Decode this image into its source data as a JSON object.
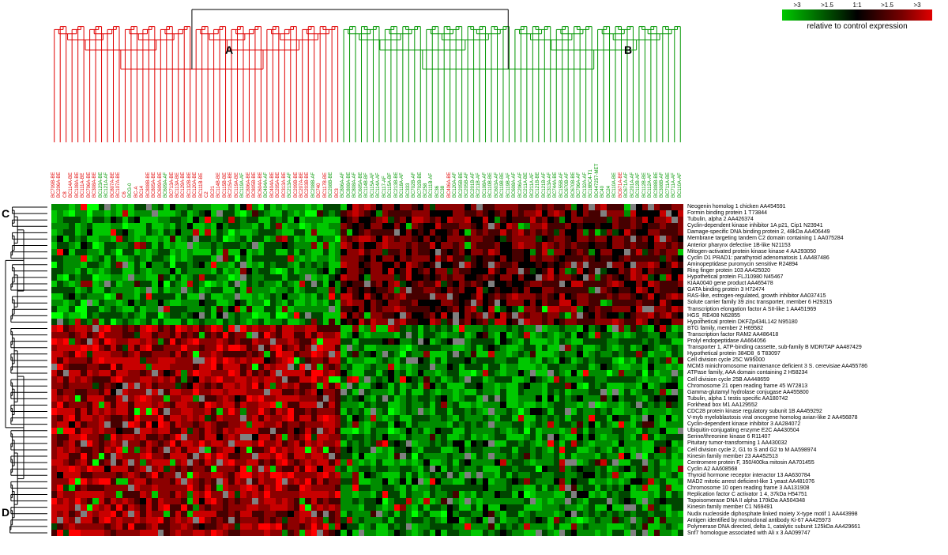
{
  "legend": {
    "ticks": [
      ">3",
      ">1.5",
      "1:1",
      ">1.5",
      ">3"
    ],
    "caption": "relative to control expression",
    "gradient_stops": [
      "#00c800",
      "#007800",
      "#000000",
      "#780000",
      "#e00000"
    ]
  },
  "cluster_labels": {
    "A": "A",
    "B": "B",
    "C": "C",
    "D": "D"
  },
  "dendrogram_colors": {
    "root": "#000000",
    "col_A": "#e00000",
    "col_B": "#009600",
    "row": "#000000"
  },
  "value_colors": {
    "v-4": "#00ff00",
    "v-3": "#00c800",
    "v-2": "#008c00",
    "v-1": "#004600",
    "v0": "#000000",
    "v1": "#460000",
    "v2": "#8c0000",
    "v3": "#c80000",
    "v4": "#ff0000",
    "vNA": "#808080"
  },
  "samples": [
    {
      "id": "BC709B-BE",
      "c": "A"
    },
    {
      "id": "BC206A-BE",
      "c": "A"
    },
    {
      "id": "C8",
      "c": "A"
    },
    {
      "id": "BC114A-BE",
      "c": "A"
    },
    {
      "id": "BC108A-BE",
      "c": "A"
    },
    {
      "id": "BC111A-BE",
      "c": "A"
    },
    {
      "id": "BC706A-BE",
      "c": "A"
    },
    {
      "id": "BC308A-BE",
      "c": "A"
    },
    {
      "id": "BC123A-BE",
      "c": "B"
    },
    {
      "id": "BC121A-AF",
      "c": "B"
    },
    {
      "id": "BC807A-BE",
      "c": "A"
    },
    {
      "id": "BC107A-BE",
      "c": "A"
    },
    {
      "id": "C6",
      "c": "A"
    },
    {
      "id": "BCG-0",
      "c": "B"
    },
    {
      "id": "BC-A",
      "c": "A"
    },
    {
      "id": "BC14",
      "c": "A"
    },
    {
      "id": "BC808B-BE",
      "c": "A"
    },
    {
      "id": "BC805A-BE",
      "c": "A"
    },
    {
      "id": "BC609A-BE",
      "c": "A"
    },
    {
      "id": "BC609A-AF",
      "c": "B"
    },
    {
      "id": "BC713A-BE",
      "c": "A"
    },
    {
      "id": "BC113A-BE",
      "c": "A"
    },
    {
      "id": "BC129A-BE",
      "c": "A"
    },
    {
      "id": "BC132B-BE",
      "c": "A"
    },
    {
      "id": "BC120A-BE",
      "c": "A"
    },
    {
      "id": "BC111B-BE",
      "c": "A"
    },
    {
      "id": "C2",
      "c": "A"
    },
    {
      "id": "BC21",
      "c": "A"
    },
    {
      "id": "BC114B-BE",
      "c": "A"
    },
    {
      "id": "BC115B-BE",
      "c": "A"
    },
    {
      "id": "BC215A-BE",
      "c": "A"
    },
    {
      "id": "BC119A-BE",
      "c": "A"
    },
    {
      "id": "BC119A-AF",
      "c": "B"
    },
    {
      "id": "BC806A-BE",
      "c": "A"
    },
    {
      "id": "BC805B-BE",
      "c": "A"
    },
    {
      "id": "BC604A-BE",
      "c": "A"
    },
    {
      "id": "BC404A-AF",
      "c": "B"
    },
    {
      "id": "BC404A-BE",
      "c": "A"
    },
    {
      "id": "BC205A-BE",
      "c": "A"
    },
    {
      "id": "BC313A-BE",
      "c": "A"
    },
    {
      "id": "BC213A-AF",
      "c": "B"
    },
    {
      "id": "BC209B-BE",
      "c": "A"
    },
    {
      "id": "BC207A-BE",
      "c": "A"
    },
    {
      "id": "BC203B-BE",
      "c": "A"
    },
    {
      "id": "BC208B-AF",
      "c": "B"
    },
    {
      "id": "BC740",
      "c": "A"
    },
    {
      "id": "BC117B-BE",
      "c": "A"
    },
    {
      "id": "BC208B-BE",
      "c": "B"
    },
    {
      "id": "BC3",
      "c": "A"
    },
    {
      "id": "BC806A-AF",
      "c": "B"
    },
    {
      "id": "BC808A-BE",
      "c": "B"
    },
    {
      "id": "BC808A-AF",
      "c": "B"
    },
    {
      "id": "BC605A-BE",
      "c": "B"
    },
    {
      "id": "BC114B-BF",
      "c": "B"
    },
    {
      "id": "BC115A-AF",
      "c": "B"
    },
    {
      "id": "BC114A-AF",
      "c": "B"
    },
    {
      "id": "BC117-AF",
      "c": "B"
    },
    {
      "id": "BC115A-BF",
      "c": "B"
    },
    {
      "id": "BC213B-BE",
      "c": "B"
    },
    {
      "id": "BC118A-AF",
      "c": "B"
    },
    {
      "id": "BC333",
      "c": "B"
    },
    {
      "id": "BC702B-AF",
      "c": "B"
    },
    {
      "id": "BC702B-BE",
      "c": "B"
    },
    {
      "id": "BC258",
      "c": "B"
    },
    {
      "id": "BC111B-AF",
      "c": "B"
    },
    {
      "id": "BC36",
      "c": "B"
    },
    {
      "id": "BC38",
      "c": "B"
    },
    {
      "id": "BC406A-BE",
      "c": "A"
    },
    {
      "id": "BC120A-AF",
      "c": "B"
    },
    {
      "id": "BC205B-BE",
      "c": "B"
    },
    {
      "id": "BC205B-AF",
      "c": "B"
    },
    {
      "id": "BC201B-AF",
      "c": "B"
    },
    {
      "id": "BC211B-AF",
      "c": "B"
    },
    {
      "id": "BC108A-AF",
      "c": "B"
    },
    {
      "id": "BC110B-BE",
      "c": "B"
    },
    {
      "id": "BC603A-AF",
      "c": "B"
    },
    {
      "id": "BC119B-BE",
      "c": "B"
    },
    {
      "id": "BC119B-AF",
      "c": "B"
    },
    {
      "id": "BC608A-AF",
      "c": "B"
    },
    {
      "id": "BC206A-AF",
      "c": "B"
    },
    {
      "id": "BC211A-BE",
      "c": "B"
    },
    {
      "id": "BC211A-AF",
      "c": "B"
    },
    {
      "id": "BC121B-BE",
      "c": "B"
    },
    {
      "id": "BC121B-AF",
      "c": "B"
    },
    {
      "id": "BC313A-AF",
      "c": "B"
    },
    {
      "id": "BC744A-BE",
      "c": "B"
    },
    {
      "id": "BC155B-AF",
      "c": "B"
    },
    {
      "id": "BC670B-AF",
      "c": "B"
    },
    {
      "id": "BC670B-BE",
      "c": "B"
    },
    {
      "id": "BC706A-AF",
      "c": "B"
    },
    {
      "id": "BC132A-AF",
      "c": "B"
    },
    {
      "id": "BC18BC4-T1",
      "c": "B"
    },
    {
      "id": "BC447257-MET",
      "c": "B"
    },
    {
      "id": "BC40",
      "c": "B"
    },
    {
      "id": "BC24",
      "c": "B"
    },
    {
      "id": "BC110A-BE",
      "c": "B"
    },
    {
      "id": "BC671A-BE",
      "c": "A"
    },
    {
      "id": "BC671A-AF",
      "c": "B"
    },
    {
      "id": "BC201A-AF",
      "c": "B"
    },
    {
      "id": "BC112B-AF",
      "c": "B"
    },
    {
      "id": "BC112B-BE",
      "c": "B"
    },
    {
      "id": "BC112A-AF",
      "c": "B"
    },
    {
      "id": "BC308B-BE",
      "c": "B"
    },
    {
      "id": "BC308B-AF",
      "c": "B"
    },
    {
      "id": "BC711A-BE",
      "c": "B"
    },
    {
      "id": "BC711A-AF",
      "c": "B"
    },
    {
      "id": "BC110A-AF",
      "c": "B"
    }
  ],
  "genes": [
    "Neogenin homolog 1 chicken AA454591",
    "Formin binding protein 1 T73844",
    "Tubulin, alpha 2 AA426374",
    "Cyclin-dependent kinase inhibitor 1A p21, Cip1 N23941",
    "Damage-specific DNA binding protein 2, 48kDa AA406449",
    "Membrane targeting tandem C2 domain containing 1 AA075284",
    "Anterior pharynx defective 1B-like N21153",
    "Mitogen-activated protein kinase kinase 4 AA293050",
    "Cyclin D1 PRAD1: parathyroid adenomatosis 1 AA487486",
    "Aminopeptidase puromycin sensitive R24894",
    "Ring finger protein 103 AA425020",
    "Hypothetical protein FLJ10980 N45467",
    "KIAA0040 gene product AA465478",
    "GATA binding protein 3 H72474",
    "RAS-like, estrogen-regulated, growth inhibitor AA037415",
    "Solute carrier family 39 zinc transporter, member 6 H29315",
    "Transcription elongation factor A SII-like 1 AA451969",
    "HGS_RE408 N62855",
    "Hypothetical protein DKFZp434L142 N95180",
    "BTG family, member 2 H69582",
    "Transcription factor RAM2 AA486418",
    "Prolyl endopeptidase AA664056",
    "Transporter 1, ATP-binding cassette, sub-family B MDR/TAP AA487429",
    "Hypothetical protein 384D8_6 T83097",
    "Cell division cycle 25C W95000",
    "MCM3 minichromosome maintenance deficient 3 S. cerevisiae AA455786",
    "ATPase family, AAA domain containing 2 H58234",
    "Cell division cycle 25B AA448659",
    "Chromosome 21 open reading frame 45 W72813",
    "Gamma-glutamyl hydrolase conjugase AA455800",
    "Tubulin, alpha 1 testis specific AA180742",
    "Forkhead box M1 AA129552",
    "CDC28 protein kinase regulatory subunit 1B AA459292",
    "V-myb myeloblastosis viral oncogene homolog avian-like 2 AA456878",
    "Cyclin-dependent kinase inhibitor 3 AA284072",
    "Ubiquitin-conjugating enzyme E2C AA430504",
    "Serine/threonine kinase 6 R11407",
    "Pituitary tumor-transforming 1 AA430032",
    "Cell division cycle 2, G1 to S and G2 to M AA598974",
    "Kinesin family member 23 AA452513",
    "Centromere protein F, 350/400ka mitosin AA701455",
    "Cyclin A2 AA608568",
    "Thyroid hormone receptor interactor 13 AA630784",
    "MAD2 mitotic arrest deficient-like 1 yeast AA481076",
    "Chromosome 10 open reading frame 3 AA131908",
    "Replication factor C activator 1 4, 37kDa H54751",
    "Topoisomerase DNA II alpha 170kDa AA504348",
    "Kinesin family member C1 N69491",
    "Nudix nucleoside diphosphate linked moiety X-type motif 1 AA443998",
    "Antigen identified by monoclonal antibody Ki-67 AA425973",
    "Polymerase DNA directed, delta 1, catalytic subunit 125kDa AA429661",
    "Snf7 homologue associated with Ali x 3 AA099747"
  ],
  "heatmap": {
    "type": "heatmap",
    "rows": 52,
    "cols": 107,
    "seed": 42,
    "na_prob": 0.04,
    "row_cluster_split": 19,
    "col_cluster_split": 49,
    "block_bias_C_A": -2.0,
    "block_bias_C_B": 1.3,
    "block_bias_D_A": 2.2,
    "block_bias_D_B": -1.8,
    "noise": 1.5
  }
}
